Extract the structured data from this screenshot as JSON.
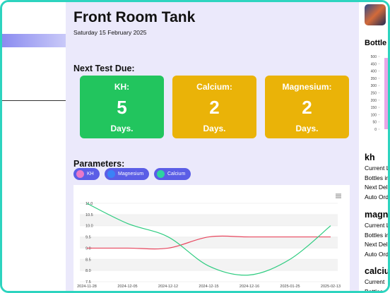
{
  "header": {
    "title": "Front Room Tank",
    "date": "Saturday 15 February 2025"
  },
  "next_test": {
    "heading": "Next Test Due:",
    "cards": [
      {
        "label": "KH:",
        "value": 5,
        "unit": "Days.",
        "color": "#22c55e"
      },
      {
        "label": "Calcium:",
        "value": 2,
        "unit": "Days.",
        "color": "#eab308"
      },
      {
        "label": "Magnesium:",
        "value": 2,
        "unit": "Days.",
        "color": "#eab308"
      }
    ]
  },
  "parameters": {
    "heading": "Parameters:",
    "legend": [
      {
        "name": "KH",
        "color": "#e879c9"
      },
      {
        "name": "Magnesium",
        "color": "#3b82f6"
      },
      {
        "name": "Calcium",
        "color": "#2dd4a0"
      }
    ]
  },
  "chart_data": {
    "type": "line",
    "categories": [
      "2024-11-28",
      "2024-12-05",
      "2024-12-12",
      "2024-12-15",
      "2024-12-16",
      "2025-01-25",
      "2025-02-13"
    ],
    "series": [
      {
        "name": "KH",
        "color": "#e8475f",
        "values": [
          9,
          9,
          9,
          9.5,
          9.5,
          9.5,
          9.5
        ]
      },
      {
        "name": "Calcium",
        "color": "#2ecc80",
        "values": [
          11,
          10.1,
          9.5,
          8.2,
          7.8,
          8.5,
          10
        ]
      }
    ],
    "ylim": [
      7.5,
      11
    ],
    "yticks": [
      {
        "value": 7.5,
        "label": "7.5"
      },
      {
        "value": 8,
        "label": "8.0"
      },
      {
        "value": 8.5,
        "label": "8.5"
      },
      {
        "value": 9,
        "label": "9.0"
      },
      {
        "value": 9.5,
        "label": "9.5"
      },
      {
        "value": 10,
        "label": "10.0"
      },
      {
        "value": 10.5,
        "label": "10.5"
      },
      {
        "value": 11,
        "label": "11.0"
      }
    ],
    "grid": true
  },
  "side": {
    "bottle_title": "Bottle",
    "bottle_chart": {
      "type": "bar",
      "values": [
        490
      ],
      "color": "#e9a6e6",
      "ylim": [
        0,
        500
      ],
      "yticks": [
        0,
        50,
        100,
        150,
        200,
        250,
        300,
        350,
        400,
        450,
        500
      ]
    },
    "sections": [
      {
        "name": "kh",
        "lines": [
          "Current L",
          "Bottles in",
          "Next Deli",
          "Auto Ord"
        ]
      },
      {
        "name": "magn",
        "lines": [
          "Current L",
          "Bottles in",
          "Next Deli",
          "Auto Ord"
        ]
      },
      {
        "name": "calciu",
        "lines": [
          "Current",
          "Bottles"
        ]
      }
    ]
  }
}
